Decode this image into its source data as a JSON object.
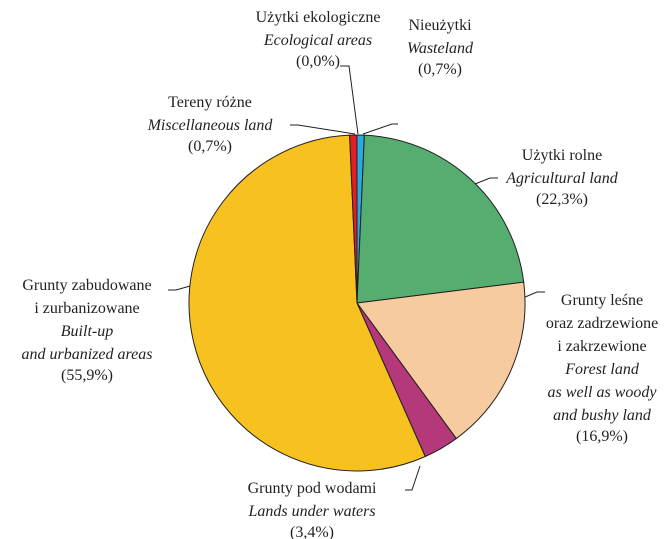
{
  "chart_data": {
    "type": "pie",
    "categories": [
      "Użytki ekologiczne",
      "Nieużytki",
      "Użytki rolne",
      "Grunty leśne oraz zadrzewione i zakrzewione",
      "Grunty pod wodami",
      "Grunty zabudowane i zurbanizowane",
      "Tereny różne"
    ],
    "categories_en": [
      "Ecological areas",
      "Wasteland",
      "Agricultural land",
      "Forest land as well as woody and bushy land",
      "Lands under waters",
      "Built-up and urbanized areas",
      "Miscellaneous land"
    ],
    "values": [
      0.0,
      0.7,
      22.3,
      16.9,
      3.4,
      55.9,
      0.7
    ],
    "value_labels": [
      "(0,0%)",
      "(0,7%)",
      "(22,3%)",
      "(16,9%)",
      "(3,4%)",
      "(55,9%)",
      "(0,7%)"
    ],
    "colors": [
      null,
      "#29abe2",
      "#55ad6f",
      "#f7cba0",
      "#b5397a",
      "#f7c21f",
      "#e31e24"
    ]
  }
}
